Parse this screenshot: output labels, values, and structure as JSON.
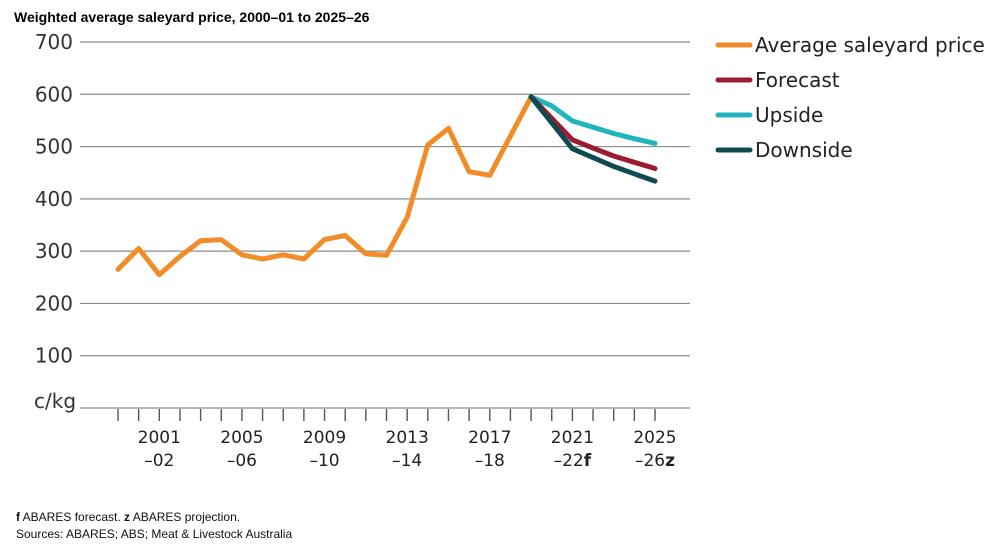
{
  "chart_data": {
    "type": "line",
    "title": "Weighted average saleyard price, 2000–01 to 2025–26",
    "ylabel": "c/kg",
    "ylim": [
      0,
      700
    ],
    "yticks": [
      100,
      200,
      300,
      400,
      500,
      600,
      700
    ],
    "x_start_year": 1999,
    "x_end_year": 2025,
    "xtick_labels": [
      {
        "year": 2001,
        "line1": "2001",
        "line2": "–02",
        "marker": ""
      },
      {
        "year": 2005,
        "line1": "2005",
        "line2": "–06",
        "marker": ""
      },
      {
        "year": 2009,
        "line1": "2009",
        "line2": "–10",
        "marker": ""
      },
      {
        "year": 2013,
        "line1": "2013",
        "line2": "–14",
        "marker": ""
      },
      {
        "year": 2017,
        "line1": "2017",
        "line2": "–18",
        "marker": ""
      },
      {
        "year": 2021,
        "line1": "2021",
        "line2": "–22",
        "marker": "f"
      },
      {
        "year": 2025,
        "line1": "2025",
        "line2": "–26",
        "marker": "z"
      }
    ],
    "series": [
      {
        "name": "Average saleyard price",
        "color": "#f28c28",
        "x": [
          1999,
          2000,
          2001,
          2002,
          2003,
          2004,
          2005,
          2006,
          2007,
          2008,
          2009,
          2010,
          2011,
          2012,
          2013,
          2014,
          2015,
          2016,
          2017,
          2018,
          2019
        ],
        "y": [
          265,
          305,
          255,
          290,
          320,
          322,
          293,
          285,
          293,
          285,
          322,
          330,
          295,
          292,
          365,
          503,
          535,
          452,
          445,
          520,
          595
        ]
      },
      {
        "name": "Forecast",
        "color": "#9b1b30",
        "x": [
          2019,
          2021,
          2022,
          2023,
          2024,
          2025
        ],
        "y": [
          595,
          513,
          497,
          482,
          470,
          458
        ]
      },
      {
        "name": "Upside",
        "color": "#1fb5bb",
        "x": [
          2019,
          2020,
          2021,
          2022,
          2023,
          2024,
          2025
        ],
        "y": [
          595,
          578,
          549,
          537,
          525,
          515,
          506
        ]
      },
      {
        "name": "Downside",
        "color": "#0f4a52",
        "x": [
          2019,
          2021,
          2022,
          2023,
          2024,
          2025
        ],
        "y": [
          595,
          496,
          479,
          462,
          448,
          434
        ]
      }
    ],
    "legend_position": "right",
    "grid": true
  },
  "footnote": {
    "f_bold": "f",
    "f_text": " ABARES forecast. ",
    "z_bold": "z",
    "z_text": " ABARES projection.",
    "sources": "Sources: ABARES; ABS; Meat & Livestock Australia"
  }
}
